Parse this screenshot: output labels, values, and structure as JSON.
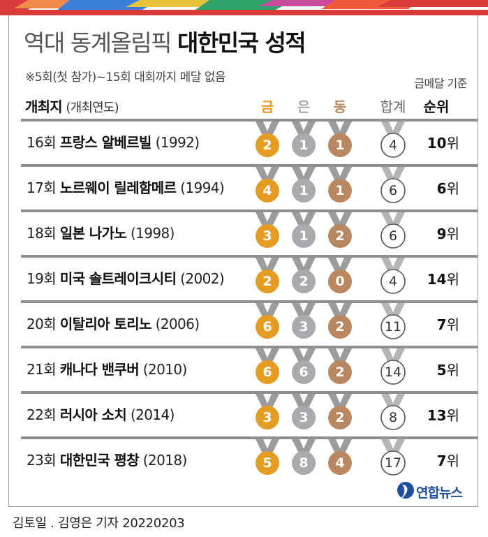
{
  "title": {
    "light": "역대 동계올림픽",
    "bold": "대한민국 성적"
  },
  "note": "※5회(첫 참가)~15회 대회까지 메달 없음",
  "basis": "금메달 기준",
  "headers": {
    "host": "개최지",
    "host_sub": "(개최연도)",
    "gold": "금",
    "silver": "은",
    "bronze": "동",
    "total": "합계",
    "rank": "순위"
  },
  "colors": {
    "gold": "#e49c23",
    "silver": "#a9aaad",
    "bronze": "#b98760",
    "total_ring": "#555555",
    "brand": "#e43c3c"
  },
  "rows": [
    {
      "edition": "16회",
      "city": "프랑스 알베르빌",
      "year": "(1992)",
      "gold": "2",
      "silver": "1",
      "bronze": "1",
      "total": "4",
      "rank": "10",
      "rank_unit": "위"
    },
    {
      "edition": "17회",
      "city": "노르웨이 릴레함메르",
      "year": "(1994)",
      "gold": "4",
      "silver": "1",
      "bronze": "1",
      "total": "6",
      "rank": "6",
      "rank_unit": "위"
    },
    {
      "edition": "18회",
      "city": "일본 나가노",
      "year": "(1998)",
      "gold": "3",
      "silver": "1",
      "bronze": "2",
      "total": "6",
      "rank": "9",
      "rank_unit": "위"
    },
    {
      "edition": "19회",
      "city": "미국 솔트레이크시티",
      "year": "(2002)",
      "gold": "2",
      "silver": "2",
      "bronze": "0",
      "total": "4",
      "rank": "14",
      "rank_unit": "위"
    },
    {
      "edition": "20회",
      "city": "이탈리아 토리노",
      "year": "(2006)",
      "gold": "6",
      "silver": "3",
      "bronze": "2",
      "total": "11",
      "rank": "7",
      "rank_unit": "위"
    },
    {
      "edition": "21회",
      "city": "캐나다 밴쿠버",
      "year": "(2010)",
      "gold": "6",
      "silver": "6",
      "bronze": "2",
      "total": "14",
      "rank": "5",
      "rank_unit": "위"
    },
    {
      "edition": "22회",
      "city": "러시아 소치",
      "year": "(2014)",
      "gold": "3",
      "silver": "3",
      "bronze": "2",
      "total": "8",
      "rank": "13",
      "rank_unit": "위"
    },
    {
      "edition": "23회",
      "city": "대한민국 평창",
      "year": "(2018)",
      "gold": "5",
      "silver": "8",
      "bronze": "4",
      "total": "17",
      "rank": "7",
      "rank_unit": "위"
    }
  ],
  "logo": {
    "text": "연합뉴스",
    "icon": "yonhap-logo-icon"
  },
  "credit": "김토일 . 김영은 기자  20220203"
}
